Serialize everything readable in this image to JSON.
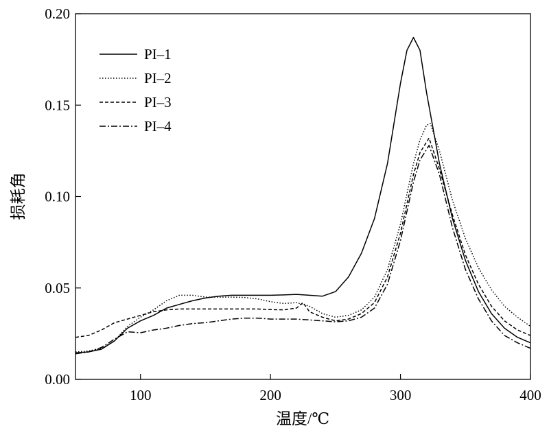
{
  "chart_data": {
    "type": "line",
    "title": "",
    "xlabel": "温度/℃",
    "ylabel": "损耗角",
    "xlim": [
      50,
      400
    ],
    "ylim": [
      0.0,
      0.2
    ],
    "grid": false,
    "legend_position": "top-left",
    "x_ticks": [
      100,
      200,
      300,
      400
    ],
    "x_tick_labels": [
      "100",
      "200",
      "300",
      "400"
    ],
    "y_ticks": [
      0.0,
      0.05,
      0.1,
      0.15,
      0.2
    ],
    "y_tick_labels": [
      "0.00",
      "0.05",
      "0.10",
      "0.15",
      "0.20"
    ],
    "series": [
      {
        "name": "PI–1",
        "dash": "solid",
        "x": [
          50,
          60,
          70,
          80,
          90,
          100,
          110,
          120,
          130,
          140,
          150,
          160,
          170,
          180,
          190,
          200,
          210,
          220,
          230,
          240,
          250,
          260,
          270,
          280,
          290,
          300,
          305,
          310,
          315,
          320,
          330,
          340,
          350,
          360,
          370,
          380,
          390,
          400
        ],
        "y": [
          0.0145,
          0.015,
          0.0165,
          0.021,
          0.028,
          0.032,
          0.035,
          0.039,
          0.041,
          0.043,
          0.0445,
          0.0455,
          0.046,
          0.046,
          0.046,
          0.046,
          0.0462,
          0.0465,
          0.046,
          0.0455,
          0.048,
          0.056,
          0.069,
          0.088,
          0.118,
          0.162,
          0.18,
          0.187,
          0.18,
          0.157,
          0.118,
          0.088,
          0.065,
          0.048,
          0.036,
          0.028,
          0.023,
          0.02
        ]
      },
      {
        "name": "PI–2",
        "dash": "dotted",
        "x": [
          50,
          60,
          70,
          80,
          90,
          100,
          110,
          120,
          130,
          140,
          150,
          160,
          170,
          180,
          190,
          200,
          210,
          220,
          230,
          240,
          250,
          260,
          270,
          280,
          290,
          300,
          310,
          315,
          320,
          323,
          330,
          340,
          350,
          360,
          370,
          380,
          390,
          400
        ],
        "y": [
          0.015,
          0.0155,
          0.017,
          0.021,
          0.029,
          0.034,
          0.038,
          0.043,
          0.046,
          0.046,
          0.045,
          0.045,
          0.045,
          0.0448,
          0.044,
          0.0425,
          0.0415,
          0.042,
          0.04,
          0.036,
          0.034,
          0.035,
          0.038,
          0.045,
          0.06,
          0.085,
          0.118,
          0.131,
          0.139,
          0.14,
          0.125,
          0.098,
          0.077,
          0.061,
          0.049,
          0.04,
          0.034,
          0.029
        ]
      },
      {
        "name": "PI–3",
        "dash": "dashed",
        "x": [
          50,
          60,
          70,
          80,
          90,
          100,
          110,
          120,
          130,
          140,
          150,
          160,
          170,
          180,
          190,
          200,
          210,
          220,
          225,
          230,
          240,
          250,
          260,
          270,
          280,
          290,
          300,
          310,
          315,
          322,
          330,
          340,
          350,
          360,
          370,
          380,
          390,
          400
        ],
        "y": [
          0.023,
          0.024,
          0.027,
          0.031,
          0.033,
          0.035,
          0.037,
          0.038,
          0.0385,
          0.0385,
          0.0385,
          0.0385,
          0.0385,
          0.0385,
          0.0385,
          0.0382,
          0.038,
          0.039,
          0.042,
          0.037,
          0.034,
          0.032,
          0.033,
          0.036,
          0.042,
          0.056,
          0.08,
          0.112,
          0.124,
          0.132,
          0.115,
          0.09,
          0.068,
          0.052,
          0.04,
          0.032,
          0.027,
          0.024
        ]
      },
      {
        "name": "PI–4",
        "dash": "dash-dot",
        "x": [
          50,
          60,
          70,
          80,
          90,
          100,
          110,
          120,
          130,
          140,
          150,
          160,
          170,
          180,
          190,
          200,
          210,
          220,
          230,
          240,
          250,
          260,
          270,
          280,
          290,
          300,
          310,
          315,
          322,
          330,
          340,
          350,
          360,
          370,
          380,
          390,
          400
        ],
        "y": [
          0.014,
          0.015,
          0.0175,
          0.022,
          0.026,
          0.0255,
          0.027,
          0.028,
          0.0295,
          0.0305,
          0.031,
          0.032,
          0.033,
          0.0335,
          0.0335,
          0.033,
          0.033,
          0.033,
          0.0325,
          0.032,
          0.0315,
          0.032,
          0.034,
          0.039,
          0.052,
          0.076,
          0.108,
          0.12,
          0.128,
          0.112,
          0.083,
          0.06,
          0.044,
          0.032,
          0.024,
          0.02,
          0.017
        ]
      }
    ]
  }
}
